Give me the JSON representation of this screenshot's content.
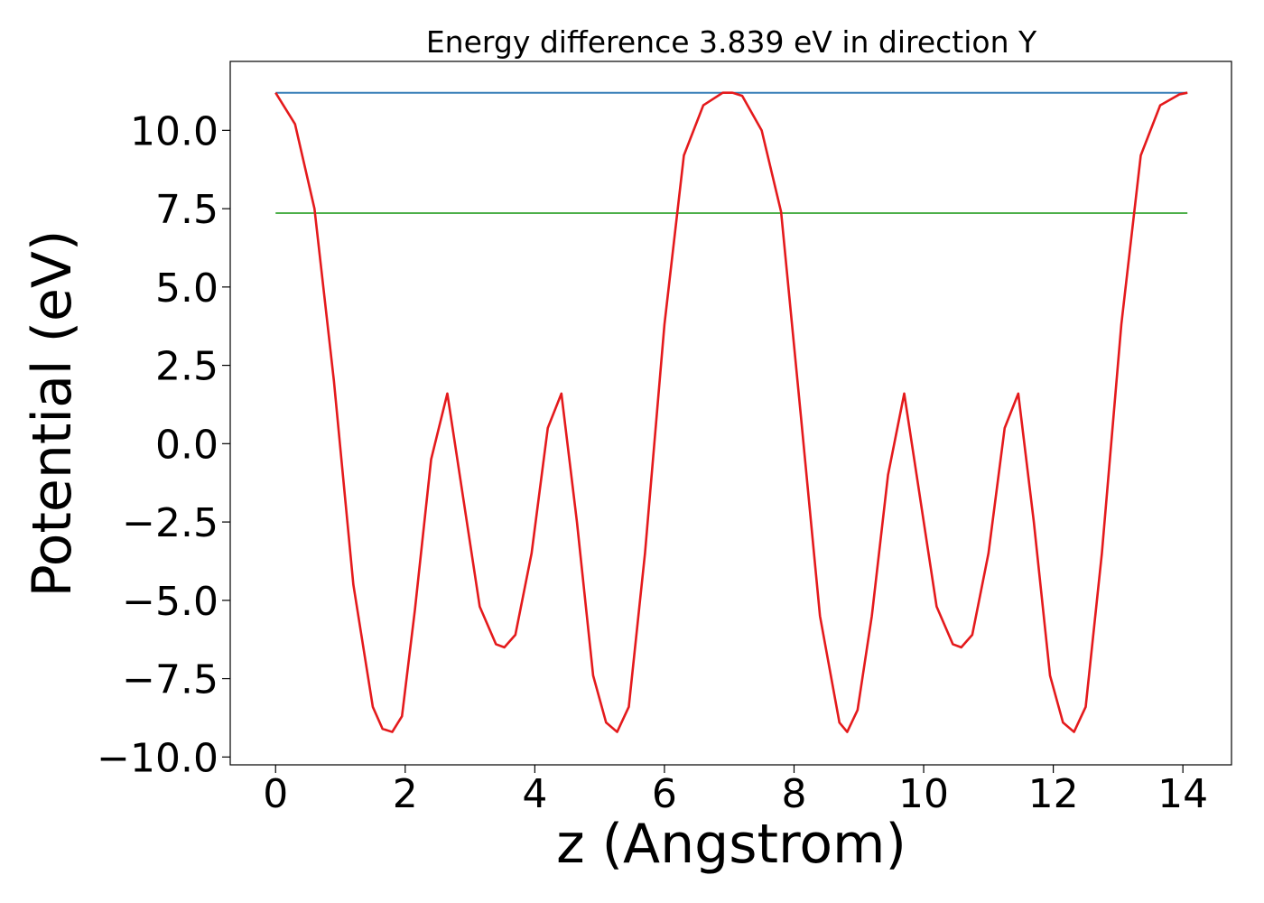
{
  "chart_data": {
    "type": "line",
    "title": "Energy difference 3.839 eV in direction Y",
    "xlabel": "z (Angstrom)",
    "ylabel": "Potential (eV)",
    "xlim": [
      -0.7,
      14.75
    ],
    "ylim": [
      -10.25,
      12.2
    ],
    "x_ticks": [
      0,
      2,
      4,
      6,
      8,
      10,
      12,
      14
    ],
    "x_tick_labels": [
      "0",
      "2",
      "4",
      "6",
      "8",
      "10",
      "12",
      "14"
    ],
    "y_ticks": [
      -10.0,
      -7.5,
      -5.0,
      -2.5,
      0.0,
      2.5,
      5.0,
      7.5,
      10.0
    ],
    "y_tick_labels": [
      "−10.0",
      "−7.5",
      "−5.0",
      "−2.5",
      "0.0",
      "2.5",
      "5.0",
      "7.5",
      "10.0"
    ],
    "grid": false,
    "legend": "none",
    "series": [
      {
        "color": "#e41a1c",
        "x": [
          0,
          0.3,
          0.6,
          0.9,
          1.2,
          1.5,
          1.65,
          1.8,
          1.95,
          2.15,
          2.4,
          2.65,
          2.9,
          3.15,
          3.4,
          3.53,
          3.7,
          3.95,
          4.2,
          4.41,
          4.65,
          4.9,
          5.1,
          5.27,
          5.45,
          5.7,
          6.0,
          6.3,
          6.6,
          6.9,
          7.05,
          7.2,
          7.5,
          7.8,
          8.1,
          8.4,
          8.7,
          8.82,
          8.98,
          9.2,
          9.45,
          9.7,
          9.95,
          10.2,
          10.45,
          10.58,
          10.75,
          11.0,
          11.25,
          11.46,
          11.7,
          11.95,
          12.15,
          12.32,
          12.5,
          12.75,
          13.05,
          13.35,
          13.65,
          13.95,
          14.07
        ],
        "y": [
          11.2,
          10.2,
          7.5,
          2.0,
          -4.5,
          -8.4,
          -9.1,
          -9.2,
          -8.7,
          -5.3,
          -0.5,
          1.6,
          -1.8,
          -5.2,
          -6.4,
          -6.5,
          -6.1,
          -3.5,
          0.5,
          1.6,
          -2.5,
          -7.4,
          -8.9,
          -9.2,
          -8.4,
          -3.5,
          3.8,
          9.2,
          10.8,
          11.2,
          11.2,
          11.1,
          10.0,
          7.4,
          1.0,
          -5.5,
          -8.9,
          -9.2,
          -8.5,
          -5.5,
          -1.0,
          1.6,
          -1.8,
          -5.2,
          -6.4,
          -6.5,
          -6.1,
          -3.5,
          0.5,
          1.6,
          -2.5,
          -7.4,
          -8.9,
          -9.2,
          -8.4,
          -3.5,
          3.8,
          9.2,
          10.8,
          11.15,
          11.2
        ]
      },
      {
        "color": "#377eb8",
        "x": [
          0,
          14.07
        ],
        "y": [
          11.2,
          11.2
        ]
      },
      {
        "color": "#4daf4a",
        "x": [
          0,
          14.07
        ],
        "y": [
          7.36,
          7.36
        ]
      }
    ]
  }
}
